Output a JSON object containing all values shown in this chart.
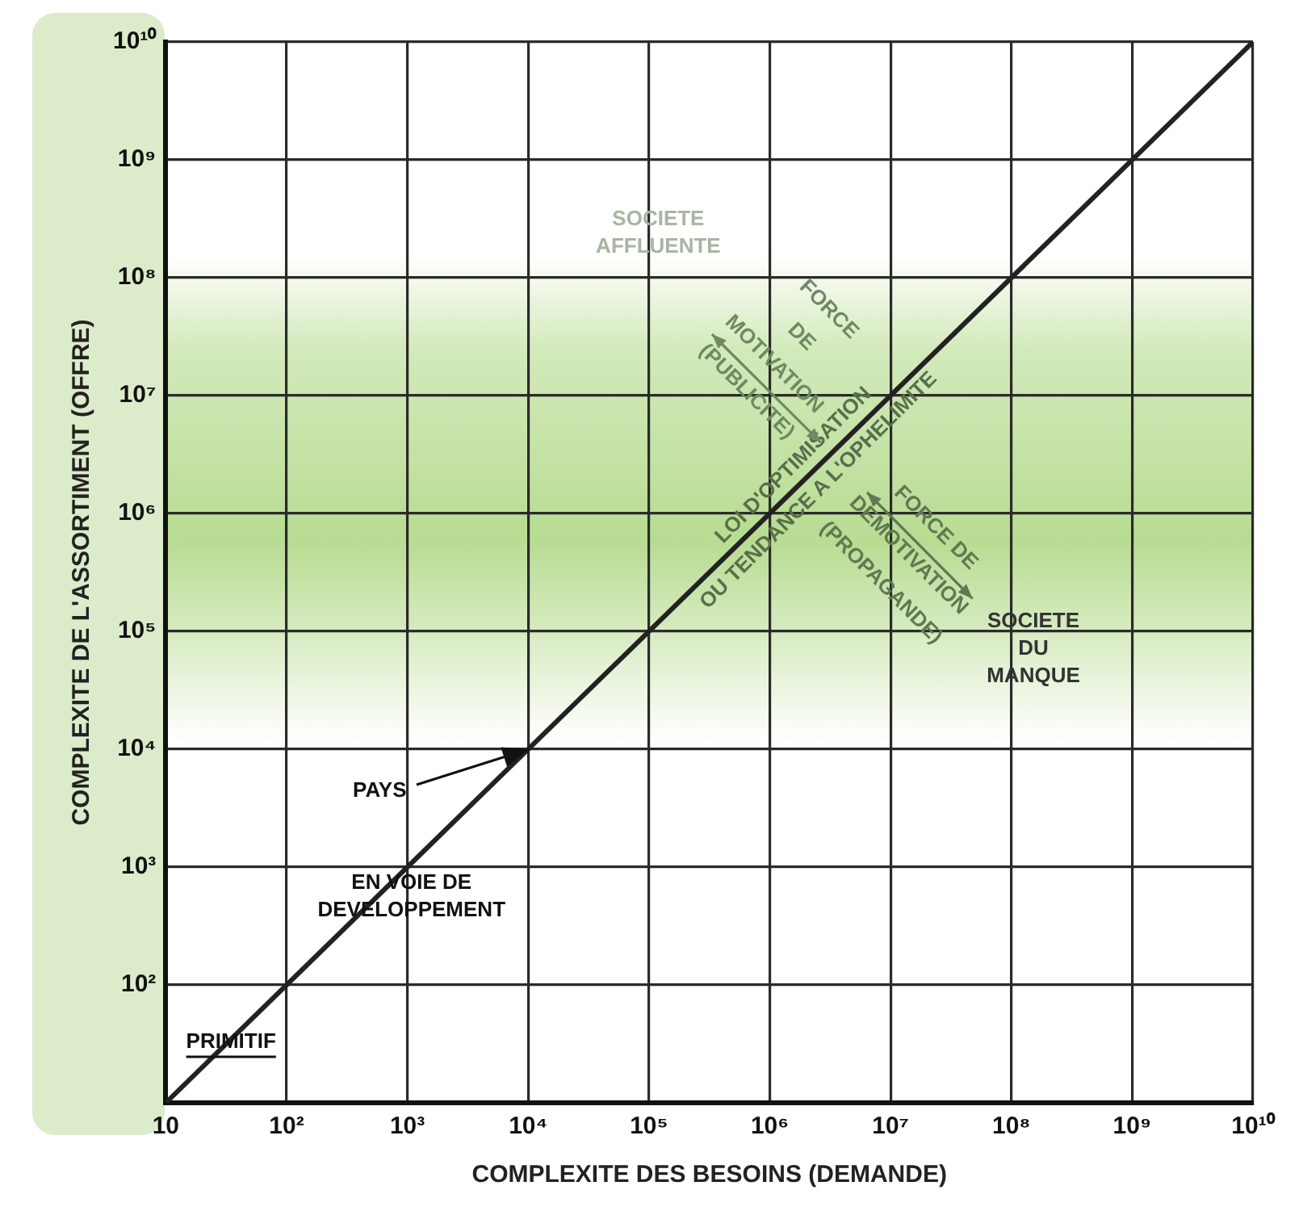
{
  "chart_data": {
    "type": "line",
    "xlabel": "COMPLEXITE DES BESOINS (DEMANDE)",
    "ylabel": "COMPLEXITE DE L'ASSORTIMENT (OFFRE)",
    "log": "xy",
    "grid": true,
    "marker": "none",
    "xlim": [
      10,
      10000000000
    ],
    "ylim": [
      10,
      10000000000
    ],
    "xticks": [
      10,
      {
        "value": 100,
        "label": "10²"
      },
      {
        "value": 1000,
        "label": "10³"
      },
      {
        "value": 10000,
        "label": "10⁴"
      },
      {
        "value": 100000,
        "label": "10⁵"
      },
      {
        "value": 1000000,
        "label": "10⁶"
      },
      {
        "value": 10000000,
        "label": "10⁷"
      },
      {
        "value": 100000000,
        "label": "10⁸"
      },
      {
        "value": 1000000000,
        "label": "10⁹"
      },
      {
        "value": 10000000000,
        "label": "10¹⁰"
      }
    ],
    "yticks": [
      {
        "value": 10,
        "label": null
      },
      {
        "value": 100,
        "label": "10²"
      },
      {
        "value": 1000,
        "label": "10³"
      },
      {
        "value": 10000,
        "label": "10⁴"
      },
      {
        "value": 100000,
        "label": "10⁵"
      },
      {
        "value": 1000000,
        "label": "10⁶"
      },
      {
        "value": 10000000,
        "label": "10⁷"
      },
      {
        "value": 100000000,
        "label": "10⁸"
      },
      {
        "value": 1000000000,
        "label": "10⁹"
      },
      {
        "value": 10000000000,
        "label": "10¹⁰"
      }
    ],
    "series": [
      {
        "color": "#222222",
        "x": [
          10,
          10000000000
        ],
        "values": [
          10,
          10000000000
        ]
      }
    ],
    "annotations": [
      "SOCIETE\nAFFLUENTE",
      {
        "text": "LOI D'OPTIMISATION\nOU TENDANCE A L'OPHELIMITE",
        "x": 2000000,
        "y": 2000000
      },
      "FORCE\nDE\nMOTIVATION\n(PUBLICITE)",
      "FORCE DE\nDEMOTIVATION\n(PROPAGANDE)",
      "SOCIETE\nDU\nMANQUE",
      {
        "text": "PAYS",
        "x": 10000,
        "y": 10000
      },
      "EN VOIE DE\nDEVELOPPEMENT",
      "PRIMITIF"
    ]
  }
}
